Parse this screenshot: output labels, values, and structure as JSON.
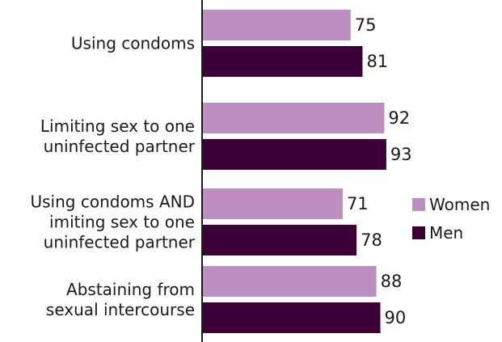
{
  "chart_data": {
    "type": "bar",
    "orientation": "horizontal",
    "categories": [
      "Using condoms",
      "Limiting sex to one uninfected partner",
      "Using condoms AND imiting sex to one uninfected partner",
      "Abstaining from sexual intercourse"
    ],
    "category_lines": [
      [
        "Using condoms"
      ],
      [
        "Limiting sex to one",
        "uninfected partner"
      ],
      [
        "Using condoms AND",
        "imiting sex to one",
        "uninfected partner"
      ],
      [
        "Abstaining from",
        "sexual intercourse"
      ]
    ],
    "series": [
      {
        "name": "Women",
        "color": "#bd8fc1",
        "values": [
          75,
          92,
          71,
          88
        ]
      },
      {
        "name": "Men",
        "color": "#3c0036",
        "values": [
          81,
          93,
          78,
          90
        ]
      }
    ],
    "title": "",
    "xlabel": "",
    "ylabel": "",
    "xlim": [
      0,
      100
    ],
    "grid": false,
    "legend": "right",
    "data_labels": true
  }
}
